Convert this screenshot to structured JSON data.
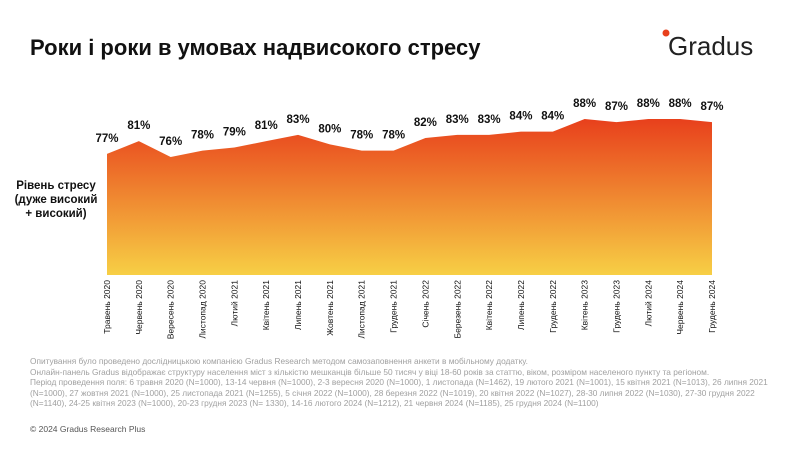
{
  "chart_data": {
    "type": "area",
    "title": "Роки і роки в умовах надвисокого стресу",
    "brand": "Gradus",
    "y_label": [
      "Рівень стресу",
      "(дуже високий",
      "+ високий)"
    ],
    "categories": [
      "Травень 2020",
      "Червень 2020",
      "Вересень 2020",
      "Листопад 2020",
      "Лютий 2021",
      "Квітень 2021",
      "Липень 2021",
      "Жовтень 2021",
      "Листопад 2021",
      "Грудень 2021",
      "Січень 2022",
      "Березень 2022",
      "Квітень 2022",
      "Липень 2022",
      "Грудень 2022",
      "Квітень 2023",
      "Грудень 2023",
      "Лютий 2024",
      "Червень 2024",
      "Грудень 2024"
    ],
    "values": [
      77,
      81,
      76,
      78,
      79,
      81,
      83,
      80,
      78,
      78,
      82,
      83,
      83,
      84,
      84,
      88,
      87,
      88,
      88,
      87
    ],
    "value_labels": [
      "77%",
      "81%",
      "76%",
      "78%",
      "79%",
      "81%",
      "83%",
      "80%",
      "78%",
      "78%",
      "82%",
      "83%",
      "83%",
      "84%",
      "84%",
      "88%",
      "87%",
      "88%",
      "88%",
      "87%"
    ],
    "gradient": [
      "#e8401c",
      "#f7cf45"
    ],
    "notes": [
      "Опитування було проведено дослідницькою компанією Gradus Research методом самозаповнення анкети в мобільному додатку.",
      "Онлайн-панель Gradus відображає структуру населення міст з кількістю мешканців більше 50 тисяч у віці 18-60 років за статтю, віком, розміром населеного пункту та регіоном.",
      "Період проведення поля: 6 травня 2020 (N=1000), 13-14 червня (N=1000), 2-3 вересня 2020 (N=1000), 1 листопада (N=1462), 19 лютого 2021 (N=1001), 15 квітня 2021 (N=1013), 26 липня 2021 (N=1000), 27 жовтня 2021 (N=1000), 25 листопада 2021 (N=1255), 5 січня 2022 (N=1000), 28 березня 2022 (N=1019), 20 квітня 2022 (N=1027), 28-30 липня 2022 (N=1030), 27-30 грудня 2022 (N=1140), 24-25 квітня 2023 (N=1000), 20-23 грудня 2023 (N= 1330), 14-16 лютого 2024 (N=1212), 21 червня 2024 (N=1185), 25 грудня 2024 (N=1100)"
    ],
    "copyright": "© 2024 Gradus Research Plus"
  }
}
